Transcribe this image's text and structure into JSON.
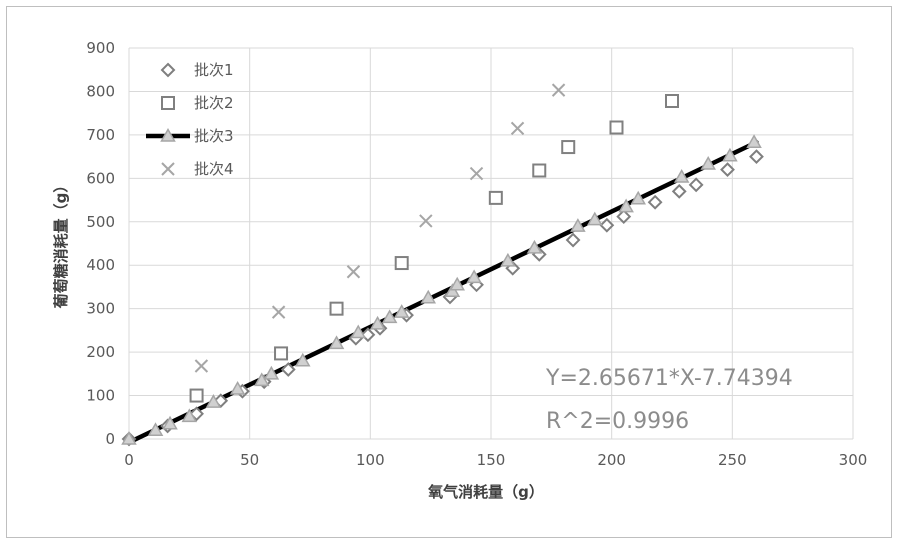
{
  "chart_data": {
    "type": "scatter",
    "title": "",
    "xlabel": "氧气消耗量（g）",
    "ylabel": "葡萄糖消耗量（g）",
    "xlim": [
      0,
      300
    ],
    "ylim": [
      0,
      900
    ],
    "x_ticks": [
      "0",
      "50",
      "100",
      "150",
      "200",
      "250",
      "300"
    ],
    "y_ticks": [
      "0",
      "100",
      "200",
      "300",
      "400",
      "500",
      "600",
      "700",
      "800",
      "900"
    ],
    "grid": true,
    "legend_position": "top-left",
    "series": [
      {
        "name": "批次1",
        "marker": "diamond",
        "color": "#7f7f7f",
        "points": [
          [
            0,
            0
          ],
          [
            16,
            30
          ],
          [
            28,
            58
          ],
          [
            38,
            88
          ],
          [
            47,
            110
          ],
          [
            56,
            132
          ],
          [
            66,
            160
          ],
          [
            94,
            232
          ],
          [
            99,
            240
          ],
          [
            104,
            255
          ],
          [
            115,
            285
          ],
          [
            133,
            327
          ],
          [
            144,
            355
          ],
          [
            159,
            393
          ],
          [
            170,
            425
          ],
          [
            184,
            458
          ],
          [
            198,
            492
          ],
          [
            205,
            512
          ],
          [
            218,
            545
          ],
          [
            228,
            570
          ],
          [
            235,
            585
          ],
          [
            248,
            620
          ],
          [
            260,
            650
          ]
        ]
      },
      {
        "name": "批次2",
        "marker": "square",
        "color": "#808080",
        "points": [
          [
            28,
            100
          ],
          [
            63,
            197
          ],
          [
            86,
            300
          ],
          [
            113,
            405
          ],
          [
            152,
            555
          ],
          [
            170,
            618
          ],
          [
            182,
            672
          ],
          [
            202,
            717
          ],
          [
            225,
            778
          ]
        ]
      },
      {
        "name": "批次3",
        "marker": "triangle",
        "color": "#a6a6a6",
        "points": [
          [
            0,
            0
          ],
          [
            11,
            20
          ],
          [
            17,
            35
          ],
          [
            25,
            52
          ],
          [
            35,
            85
          ],
          [
            45,
            115
          ],
          [
            55,
            135
          ],
          [
            59,
            150
          ],
          [
            72,
            180
          ],
          [
            86,
            220
          ],
          [
            95,
            245
          ],
          [
            103,
            265
          ],
          [
            108,
            280
          ],
          [
            113,
            292
          ],
          [
            124,
            325
          ],
          [
            134,
            340
          ],
          [
            136,
            355
          ],
          [
            143,
            372
          ],
          [
            157,
            410
          ],
          [
            168,
            440
          ],
          [
            186,
            490
          ],
          [
            193,
            505
          ],
          [
            206,
            535
          ],
          [
            211,
            553
          ],
          [
            229,
            603
          ],
          [
            240,
            633
          ],
          [
            249,
            652
          ],
          [
            259,
            683
          ]
        ]
      },
      {
        "name": "批次4",
        "marker": "x",
        "color": "#a6a6a6",
        "points": [
          [
            30,
            168
          ],
          [
            62,
            292
          ],
          [
            93,
            385
          ],
          [
            123,
            502
          ],
          [
            144,
            611
          ],
          [
            161,
            715
          ],
          [
            178,
            803
          ]
        ]
      }
    ],
    "trendline": {
      "slope": 2.65671,
      "intercept": -7.74394,
      "x_range": [
        0,
        260
      ],
      "color": "#000000"
    },
    "annotations": [
      "Y=2.65671*X-7.74394",
      "R^2=0.9996"
    ]
  }
}
